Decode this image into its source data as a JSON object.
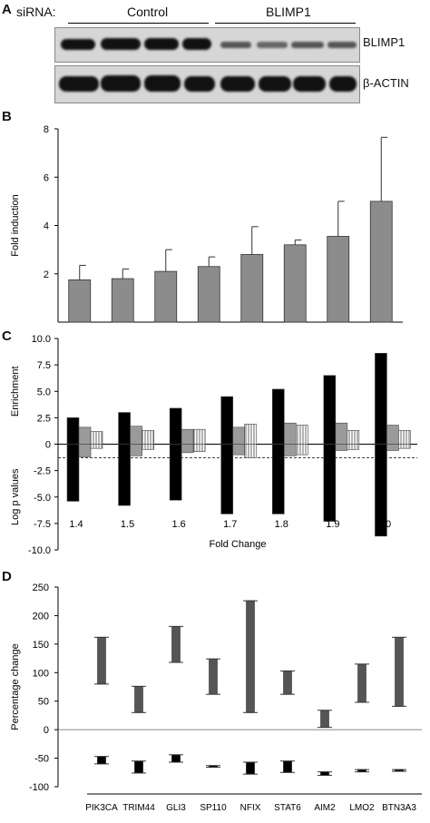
{
  "panel_a": {
    "label": "A",
    "sirna_label": "siRNA:",
    "group_control": "Control",
    "group_blimp1": "BLIMP1",
    "row1_label": "BLIMP1",
    "row2_label": "β-ACTIN"
  },
  "panel_b": {
    "label": "B"
  },
  "panel_c": {
    "label": "C"
  },
  "panel_d": {
    "label": "D"
  },
  "chart_data": [
    {
      "type": "bar",
      "panel": "B",
      "ylabel": "Fold induction",
      "ylim": [
        0,
        8
      ],
      "yticks": [
        "2",
        "4",
        "6",
        "8"
      ],
      "categories": [
        "PIK3CA",
        "TRIM44",
        "GLI3",
        "SP110",
        "NFIX",
        "STAT6",
        "AIM2",
        "LMO2"
      ],
      "values": [
        1.75,
        1.8,
        2.1,
        2.3,
        2.8,
        3.2,
        3.55,
        5.0
      ],
      "error": [
        0.6,
        0.4,
        0.9,
        0.4,
        1.15,
        0.2,
        1.45,
        2.65
      ],
      "color": "#8c8c8c"
    },
    {
      "type": "bar",
      "panel": "C",
      "xlabel": "Fold Change",
      "ylabel_top": "Enrichment",
      "ylabel_bottom": "Log p values",
      "ylim": [
        -10,
        10
      ],
      "yticks": [
        "10.0",
        "7.5",
        "5.0",
        "2.5",
        "0",
        "-2.5",
        "-5.0",
        "-7.5",
        "-10.0"
      ],
      "dashed_line": -1.3,
      "categories": [
        "1.4",
        "1.5",
        "1.6",
        "1.7",
        "1.8",
        "1.9",
        "2.0"
      ],
      "series": [
        {
          "color": "#000000",
          "pattern": "solid",
          "pos": [
            2.5,
            3.0,
            3.4,
            4.5,
            5.2,
            6.5,
            8.6
          ],
          "neg": [
            -5.4,
            -5.8,
            -5.3,
            -6.6,
            -6.6,
            -7.3,
            -8.7
          ]
        },
        {
          "color": "#9a9a9a",
          "pattern": "solid",
          "pos": [
            1.6,
            1.7,
            1.4,
            1.6,
            2.0,
            2.0,
            1.8
          ],
          "neg": [
            -1.2,
            -1.1,
            -0.8,
            -1.0,
            -1.1,
            -0.6,
            -0.6
          ]
        },
        {
          "color": "#ffffff",
          "pattern": "vertical-stripes",
          "pos": [
            1.2,
            1.3,
            1.4,
            1.9,
            1.8,
            1.3,
            1.3
          ],
          "neg": [
            -0.4,
            -0.5,
            -0.7,
            -1.3,
            -1.0,
            -0.5,
            -0.4
          ]
        }
      ]
    },
    {
      "type": "bar",
      "panel": "D",
      "ylabel": "Percentage change",
      "ylim": [
        -100,
        250
      ],
      "yticks": [
        "250",
        "200",
        "150",
        "100",
        "50",
        "0",
        "-50",
        "-100"
      ],
      "categories": [
        "PIK3CA",
        "TRIM44",
        "GLI3",
        "SP110",
        "NFIX",
        "STAT6",
        "AIM2",
        "LMO2",
        "BTN3A3"
      ],
      "up_range": [
        [
          80,
          162
        ],
        [
          30,
          76
        ],
        [
          118,
          181
        ],
        [
          62,
          124
        ],
        [
          30,
          226
        ],
        [
          62,
          103
        ],
        [
          4,
          34
        ],
        [
          48,
          115
        ],
        [
          41,
          162
        ]
      ],
      "down_range": [
        [
          -47,
          -60
        ],
        [
          -55,
          -76
        ],
        [
          -44,
          -57
        ],
        [
          -63,
          -66
        ],
        [
          -57,
          -78
        ],
        [
          -55,
          -75
        ],
        [
          -74,
          -80
        ],
        [
          -70,
          -74
        ],
        [
          -70,
          -73
        ]
      ],
      "color_up": "#555555",
      "color_down": "#000000"
    }
  ]
}
